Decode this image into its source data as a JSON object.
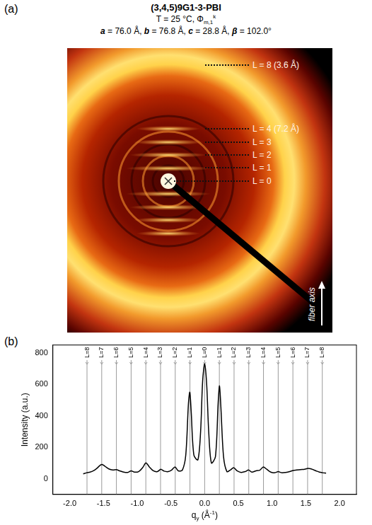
{
  "panel_a": {
    "label": "(a)",
    "title": "(3,4,5)9G1-3-PBI",
    "conditions": [
      {
        "text": "T = 25 °C, Φ"
      },
      {
        "text": "m,1",
        "sub": true
      },
      {
        "text": "k",
        "sup": true
      }
    ],
    "lattice": [
      {
        "text": "a",
        "bold": true,
        "italic": true
      },
      {
        "text": " = 76.0 Å, "
      },
      {
        "text": "b",
        "bold": true,
        "italic": true
      },
      {
        "text": " = 76.8 Å, "
      },
      {
        "text": "c",
        "bold": true,
        "italic": true
      },
      {
        "text": " = 28.8 Å, "
      },
      {
        "text": "β",
        "bold": true,
        "italic": true
      },
      {
        "text": " = 102.0°"
      }
    ],
    "layer_lines": [
      "L = 8 (3.6 Å)",
      "L = 4 (7.2 Å)",
      "L = 3",
      "L = 2",
      "L = 1",
      "L = 0"
    ],
    "axis_label": "fiber axis"
  },
  "chart_data": {
    "panel_label": "(b)",
    "type": "line",
    "color": "#000000",
    "grid": false,
    "y_label": "Intensity (a.u.)",
    "x_label": [
      {
        "text": "q"
      },
      {
        "text": "y",
        "sub": true
      },
      {
        "text": " (Å"
      },
      {
        "text": "-1",
        "sup": true
      },
      {
        "text": ")"
      }
    ],
    "x": [
      -1.8,
      -1.75,
      -1.7,
      -1.65,
      -1.6,
      -1.55,
      -1.52,
      -1.48,
      -1.42,
      -1.36,
      -1.31,
      -1.26,
      -1.2,
      -1.14,
      -1.09,
      -1.04,
      -0.98,
      -0.92,
      -0.87,
      -0.82,
      -0.76,
      -0.7,
      -0.65,
      -0.6,
      -0.54,
      -0.49,
      -0.44,
      -0.39,
      -0.33,
      -0.28,
      -0.24,
      -0.22,
      -0.2,
      -0.16,
      -0.1,
      -0.06,
      -0.03,
      0.0,
      0.03,
      0.06,
      0.1,
      0.16,
      0.2,
      0.22,
      0.24,
      0.28,
      0.33,
      0.38,
      0.43,
      0.48,
      0.54,
      0.6,
      0.65,
      0.7,
      0.76,
      0.82,
      0.87,
      0.92,
      0.98,
      1.04,
      1.09,
      1.14,
      1.2,
      1.26,
      1.31,
      1.36,
      1.42,
      1.48,
      1.53,
      1.58,
      1.65,
      1.7,
      1.75,
      1.8
    ],
    "values": [
      30,
      38,
      42,
      50,
      65,
      85,
      90,
      80,
      62,
      55,
      58,
      50,
      42,
      40,
      50,
      42,
      45,
      70,
      100,
      75,
      50,
      45,
      60,
      48,
      45,
      55,
      75,
      50,
      55,
      150,
      480,
      550,
      430,
      150,
      120,
      300,
      620,
      730,
      600,
      300,
      100,
      140,
      480,
      590,
      460,
      140,
      45,
      55,
      70,
      50,
      40,
      45,
      55,
      42,
      50,
      55,
      75,
      60,
      42,
      38,
      45,
      38,
      40,
      45,
      52,
      55,
      58,
      60,
      65,
      62,
      50,
      42,
      38,
      35
    ],
    "xlim": [
      -2.25,
      2.25
    ],
    "ylim": [
      -100,
      850
    ],
    "xticks": [
      {
        "value": -2,
        "label": "-2.0"
      },
      {
        "value": -1.5,
        "label": "-1.5"
      },
      {
        "value": -1,
        "label": "-1.0"
      },
      {
        "value": -0.5,
        "label": "-0.5"
      },
      {
        "value": 0,
        "label": "0.0"
      },
      {
        "value": 0.5,
        "label": "0.5"
      },
      {
        "value": 1,
        "label": "1.0"
      },
      {
        "value": 1.5,
        "label": "1.5"
      },
      {
        "value": 2,
        "label": "2.0"
      }
    ],
    "yticks": [
      0,
      200,
      400,
      600,
      800
    ],
    "reflections": [
      {
        "value": -1.744,
        "label": "L=8"
      },
      {
        "value": -1.526,
        "label": "L=7"
      },
      {
        "value": -1.308,
        "label": "L=6"
      },
      {
        "value": -1.09,
        "label": "L=5"
      },
      {
        "value": -0.872,
        "label": "L=4"
      },
      {
        "value": -0.654,
        "label": "L=3"
      },
      {
        "value": -0.436,
        "label": "L=2"
      },
      {
        "value": -0.218,
        "label": "L=1"
      },
      {
        "value": 0,
        "label": "L=0"
      },
      {
        "value": 0.218,
        "label": "L=1"
      },
      {
        "value": 0.436,
        "label": "L=2"
      },
      {
        "value": 0.654,
        "label": "L=3"
      },
      {
        "value": 0.872,
        "label": "L=4"
      },
      {
        "value": 1.09,
        "label": "L=5"
      },
      {
        "value": 1.308,
        "label": "L=6"
      },
      {
        "value": 1.526,
        "label": "L=7"
      },
      {
        "value": 1.744,
        "label": "L=8"
      }
    ]
  }
}
